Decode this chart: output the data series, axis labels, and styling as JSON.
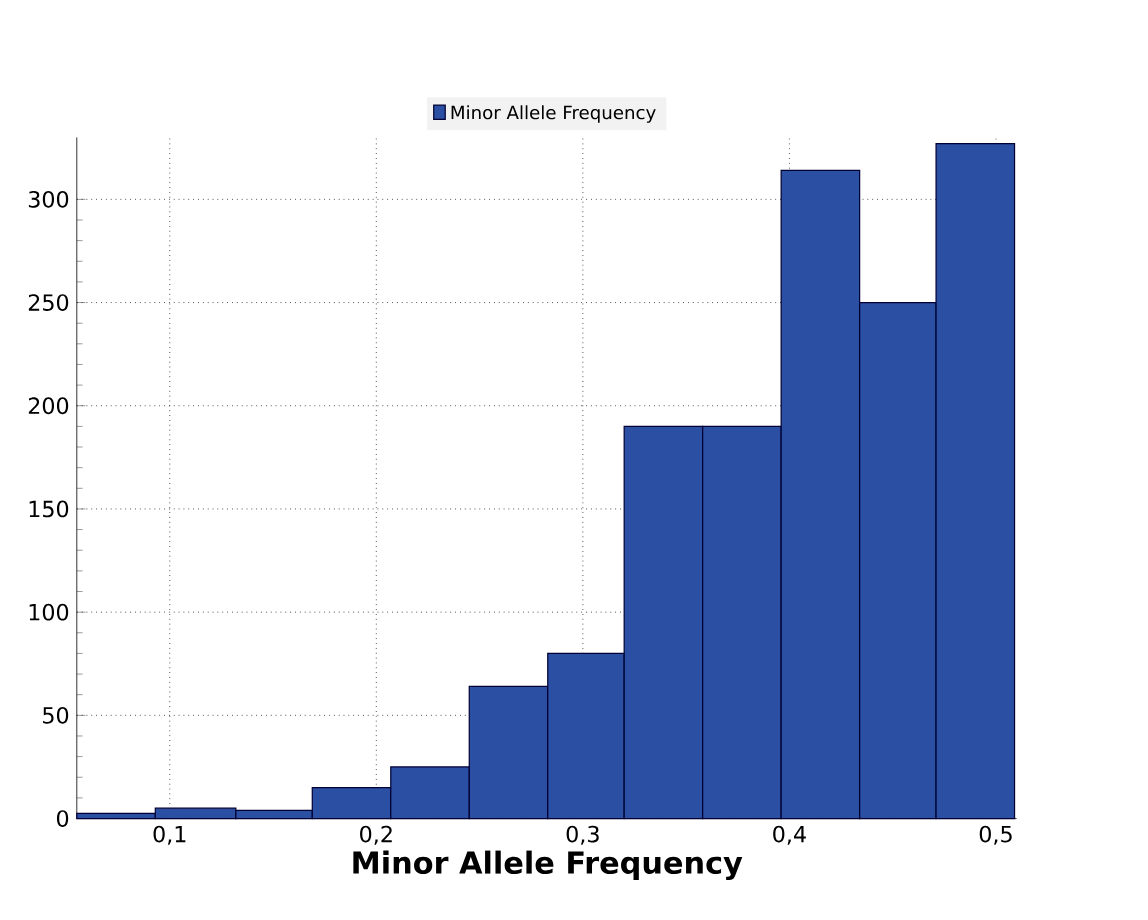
{
  "chart_data": {
    "type": "histogram",
    "xlabel": "Minor Allele Frequency",
    "bins": [
      0.055,
      0.093,
      0.132,
      0.169,
      0.207,
      0.245,
      0.283,
      0.32,
      0.358,
      0.396,
      0.434,
      0.471,
      0.509
    ],
    "series": [
      {
        "name": "Minor Allele Frequency",
        "color": "#2b4fa2",
        "values": [
          2.5,
          5,
          4,
          15,
          25,
          64,
          80,
          190,
          190,
          314,
          250,
          327
        ]
      }
    ],
    "xlim": [
      0.055,
      0.51
    ],
    "ylim": [
      0,
      330
    ],
    "xticks": [
      {
        "value": 0.1,
        "label": "0,1"
      },
      {
        "value": 0.2,
        "label": "0,2"
      },
      {
        "value": 0.3,
        "label": "0,3"
      },
      {
        "value": 0.4,
        "label": "0,4"
      },
      {
        "value": 0.5,
        "label": "0,5"
      }
    ],
    "yticks": [
      0,
      50,
      100,
      150,
      200,
      250,
      300
    ],
    "grid": true,
    "legend": "top"
  }
}
